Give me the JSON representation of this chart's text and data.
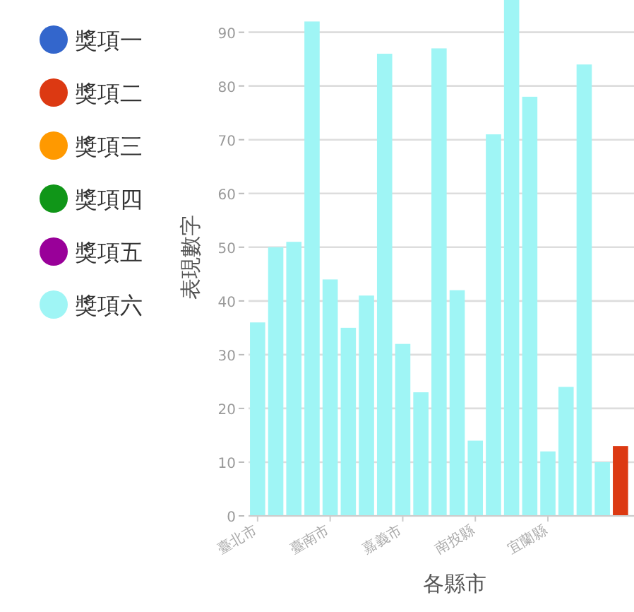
{
  "chart_data": {
    "type": "bar",
    "stacked": true,
    "xlabel": "各縣市",
    "ylabel": "表現數字",
    "categories": [
      "臺北市",
      null,
      null,
      null,
      "臺南市",
      null,
      null,
      null,
      "嘉義市",
      null,
      null,
      null,
      "南投縣",
      null,
      null,
      null,
      "宜蘭縣",
      null,
      null,
      null,
      null
    ],
    "series": [
      {
        "name": "獎項一",
        "color": "#3366cc",
        "values": [
          null,
          null,
          null,
          null,
          null,
          null,
          null,
          null,
          null,
          null,
          null,
          null,
          null,
          null,
          null,
          null,
          null,
          null,
          null,
          null,
          null
        ]
      },
      {
        "name": "獎項二",
        "color": "#dc3912",
        "values": [
          null,
          null,
          null,
          null,
          null,
          null,
          null,
          null,
          null,
          null,
          null,
          null,
          null,
          null,
          null,
          null,
          null,
          null,
          null,
          null,
          13
        ]
      },
      {
        "name": "獎項三",
        "color": "#ff9900",
        "values": [
          null,
          null,
          null,
          null,
          null,
          null,
          null,
          null,
          null,
          null,
          null,
          null,
          null,
          null,
          null,
          null,
          null,
          null,
          null,
          null,
          null
        ]
      },
      {
        "name": "獎項四",
        "color": "#109618",
        "values": [
          null,
          null,
          null,
          null,
          null,
          null,
          null,
          null,
          null,
          null,
          null,
          null,
          null,
          null,
          null,
          null,
          null,
          null,
          null,
          null,
          null
        ]
      },
      {
        "name": "獎項五",
        "color": "#990099",
        "values": [
          null,
          null,
          null,
          null,
          null,
          null,
          null,
          null,
          null,
          null,
          null,
          null,
          null,
          null,
          null,
          null,
          null,
          null,
          null,
          null,
          null
        ]
      },
      {
        "name": "獎項六",
        "color": "#9ff5f5",
        "values": [
          36,
          50,
          51,
          92,
          44,
          35,
          41,
          86,
          32,
          23,
          87,
          42,
          14,
          71,
          96,
          78,
          12,
          24,
          84,
          10,
          null
        ]
      }
    ],
    "ylim": [
      0,
      96
    ],
    "yticks": [
      0,
      10,
      20,
      30,
      40,
      50,
      60,
      70,
      80,
      90
    ],
    "grid": "y",
    "legend": "left"
  }
}
